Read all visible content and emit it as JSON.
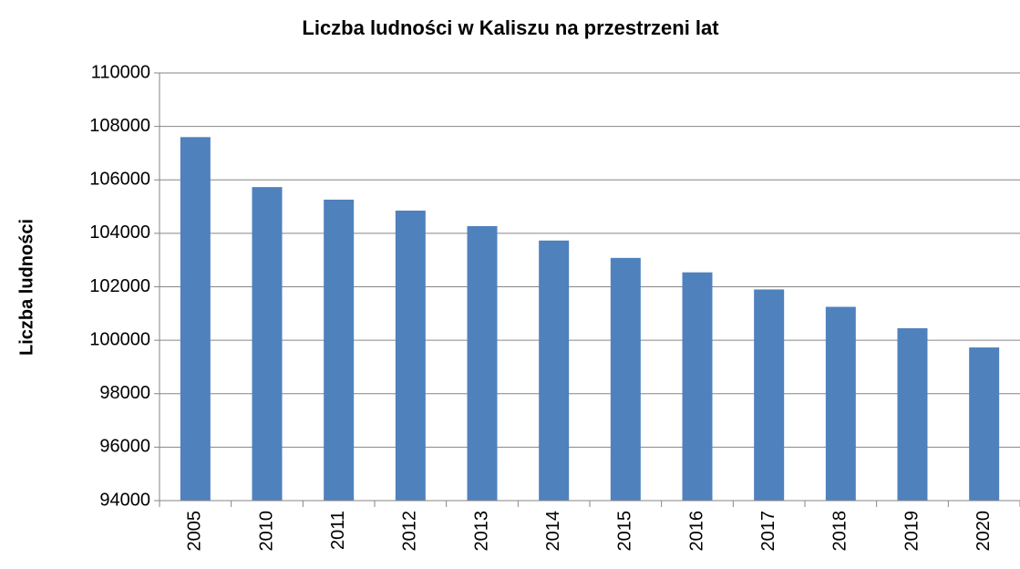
{
  "chart_data": {
    "type": "bar",
    "title": "Liczba ludności w Kaliszu na przestrzeni lat",
    "y_label": "Liczba ludności",
    "categories": [
      "2005",
      "2010",
      "2011",
      "2012",
      "2013",
      "2014",
      "2015",
      "2016",
      "2017",
      "2018",
      "2019",
      "2020"
    ],
    "values": [
      107600,
      105730,
      105260,
      104850,
      104270,
      103730,
      103080,
      102540,
      101900,
      101250,
      100450,
      99730
    ],
    "color": "#4f81bd",
    "ylim": [
      94000,
      110000
    ],
    "yticks": [
      94000,
      96000,
      98000,
      100000,
      102000,
      104000,
      106000,
      108000,
      110000
    ],
    "grid": true
  }
}
